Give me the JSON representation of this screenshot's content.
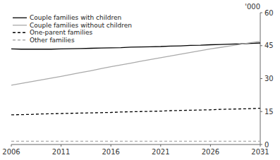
{
  "chart_data": {
    "type": "line",
    "y_label": "'000",
    "x": [
      2006,
      2007,
      2008,
      2009,
      2010,
      2011,
      2012,
      2013,
      2014,
      2015,
      2016,
      2017,
      2018,
      2019,
      2020,
      2021,
      2022,
      2023,
      2024,
      2025,
      2026,
      2027,
      2028,
      2029,
      2030,
      2031
    ],
    "series": [
      {
        "name": "Couple families with children",
        "color": "#000000",
        "line_style": "solid",
        "values": [
          43.5,
          43.4,
          43.4,
          43.4,
          43.4,
          43.5,
          43.6,
          43.7,
          43.8,
          43.9,
          44.0,
          44.1,
          44.3,
          44.4,
          44.5,
          44.6,
          44.8,
          44.9,
          45.1,
          45.2,
          45.4,
          45.5,
          45.7,
          45.8,
          46.0,
          46.2
        ]
      },
      {
        "name": "Couple families without children",
        "color": "#aaaaaa",
        "line_style": "solid",
        "values": [
          27.0,
          27.8,
          28.6,
          29.4,
          30.2,
          31.0,
          31.9,
          32.8,
          33.6,
          34.5,
          35.4,
          36.2,
          37.0,
          37.9,
          38.7,
          39.5,
          40.3,
          41.1,
          41.9,
          42.7,
          43.5,
          44.2,
          44.9,
          45.6,
          46.3,
          47.0
        ]
      },
      {
        "name": "One-parent families",
        "color": "#000000",
        "line_style": "dashed",
        "values": [
          13.5,
          13.6,
          13.7,
          13.9,
          14.0,
          14.1,
          14.2,
          14.3,
          14.4,
          14.5,
          14.6,
          14.8,
          14.9,
          15.0,
          15.1,
          15.2,
          15.4,
          15.5,
          15.6,
          15.7,
          15.8,
          16.0,
          16.1,
          16.2,
          16.3,
          16.5
        ]
      },
      {
        "name": "Other families",
        "color": "#aaaaaa",
        "line_style": "dashed",
        "values": [
          1.5,
          1.5,
          1.5,
          1.5,
          1.5,
          1.5,
          1.5,
          1.5,
          1.5,
          1.5,
          1.5,
          1.5,
          1.5,
          1.5,
          1.5,
          1.5,
          1.5,
          1.5,
          1.5,
          1.5,
          1.5,
          1.5,
          1.5,
          1.5,
          1.5,
          1.5
        ]
      }
    ],
    "xlim": [
      2006,
      2031
    ],
    "xticks": [
      2006,
      2011,
      2016,
      2021,
      2026,
      2031
    ],
    "ylim": [
      0,
      60
    ],
    "yticks": [
      0,
      15,
      30,
      45,
      60
    ],
    "grid": false,
    "legend": "upper left"
  }
}
